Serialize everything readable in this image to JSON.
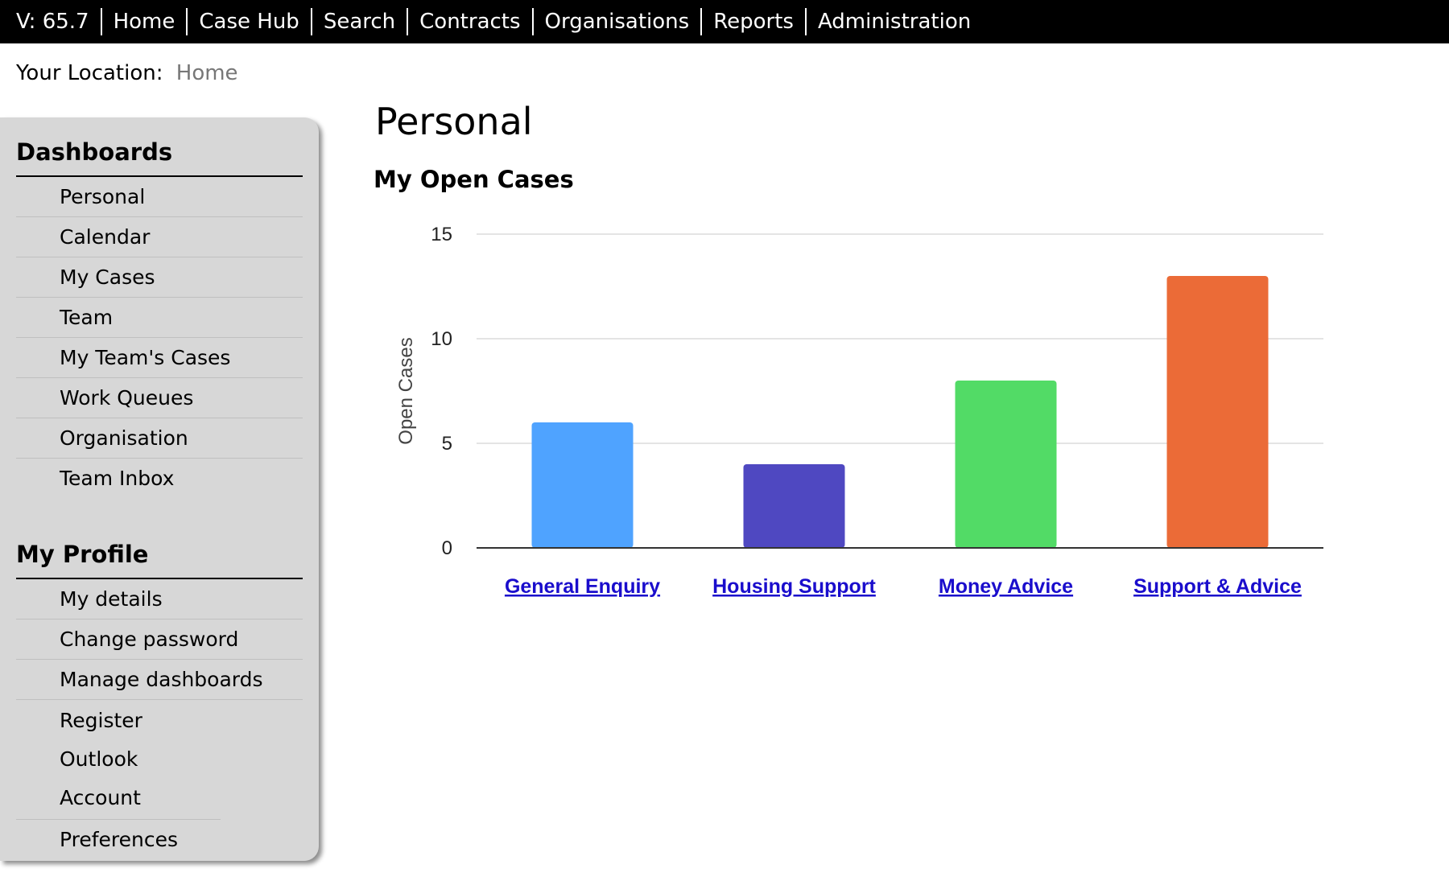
{
  "topnav": {
    "version": "V: 65.7",
    "items": [
      "Home",
      "Case Hub",
      "Search",
      "Contracts",
      "Organisations",
      "Reports",
      "Administration"
    ]
  },
  "breadcrumb": {
    "label": "Your Location:",
    "current": "Home"
  },
  "sidebar": {
    "dashboards": {
      "heading": "Dashboards",
      "items": [
        "Personal",
        "Calendar",
        "My Cases",
        "Team",
        "My Team's Cases",
        "Work Queues",
        "Organisation",
        "Team Inbox"
      ]
    },
    "profile": {
      "heading": "My Profile",
      "items": [
        "My details",
        "Change password",
        "Manage dashboards",
        "Register Outlook Account",
        "Preferences"
      ]
    }
  },
  "main": {
    "title": "Personal",
    "chart_heading": "My Open Cases"
  },
  "chart_data": {
    "type": "bar",
    "title": "My Open Cases",
    "xlabel": "",
    "ylabel": "Open Cases",
    "categories": [
      "General Enquiry",
      "Housing Support",
      "Money Advice",
      "Support & Advice"
    ],
    "values": [
      6,
      4,
      8,
      13
    ],
    "colors": [
      "#4fa3ff",
      "#4f48c1",
      "#52db66",
      "#eb6b37"
    ],
    "ylim": [
      0,
      15
    ],
    "yticks": [
      0,
      5,
      10,
      15
    ],
    "grid": true,
    "legend": "none"
  },
  "colors": {
    "topbar_bg": "#000000",
    "sidebar_bg": "#d7d7d7",
    "link": "#1a0dcc"
  }
}
